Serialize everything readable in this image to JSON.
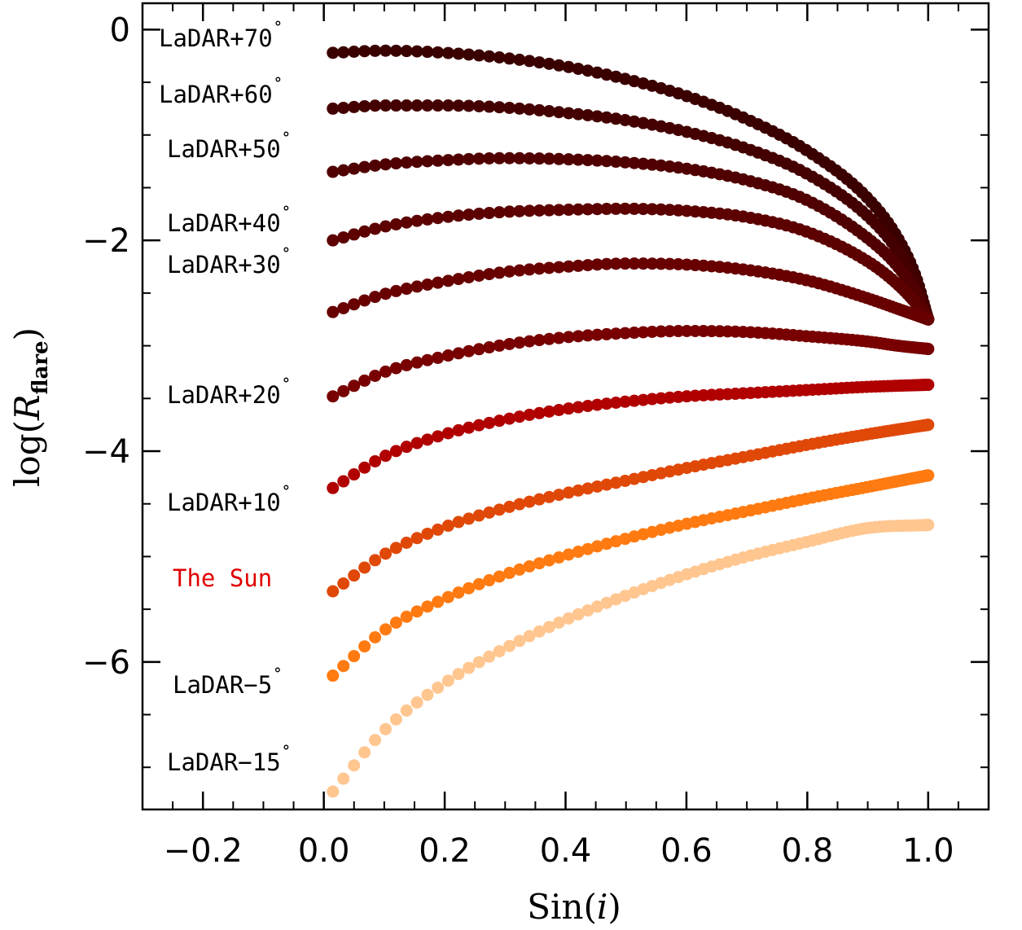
{
  "chart_data": {
    "type": "scatter",
    "xlabel": "Sin(i)",
    "ylabel": "log(R_flare)",
    "ylabel_main": "log(",
    "ylabel_italic": "R",
    "ylabel_sub": "flare",
    "ylabel_close": ")",
    "xlabel_main": "Sin(",
    "xlabel_italic": "i",
    "xlabel_close": ")",
    "xlim": [
      -0.3,
      1.1
    ],
    "ylim": [
      -7.4,
      0.25
    ],
    "xticks": [
      -0.2,
      0.0,
      0.2,
      0.4,
      0.6,
      0.8,
      1.0
    ],
    "xtick_labels": [
      "−0.2",
      "0.0",
      "0.2",
      "0.4",
      "0.6",
      "0.8",
      "1.0"
    ],
    "yticks": [
      0,
      -2,
      -4,
      -6
    ],
    "ytick_labels": [
      "0",
      "−2",
      "−4",
      "−6"
    ],
    "x_minor_step": 0.05,
    "y_minor_step": 0.5,
    "x_range": [
      0.015,
      1.0
    ],
    "grid": false,
    "legend": "none",
    "series": [
      {
        "name": "LaDAR+70°",
        "color": "#3a0000",
        "x": [
          0.015,
          0.1,
          0.2,
          0.3,
          0.4,
          0.5,
          0.6,
          0.7,
          0.8,
          0.9,
          0.95,
          0.98,
          1.0
        ],
        "y": [
          -0.22,
          -0.2,
          -0.22,
          -0.27,
          -0.35,
          -0.47,
          -0.63,
          -0.85,
          -1.15,
          -1.6,
          -1.98,
          -2.35,
          -2.75
        ]
      },
      {
        "name": "LaDAR+60°",
        "color": "#440000",
        "x": [
          0.015,
          0.1,
          0.2,
          0.3,
          0.4,
          0.5,
          0.6,
          0.7,
          0.8,
          0.9,
          0.95,
          0.98,
          1.0
        ],
        "y": [
          -0.75,
          -0.72,
          -0.72,
          -0.74,
          -0.79,
          -0.86,
          -0.97,
          -1.13,
          -1.37,
          -1.77,
          -2.1,
          -2.42,
          -2.75
        ]
      },
      {
        "name": "LaDAR+50°",
        "color": "#500000",
        "x": [
          0.015,
          0.1,
          0.2,
          0.3,
          0.4,
          0.5,
          0.6,
          0.7,
          0.8,
          0.9,
          0.95,
          0.98,
          1.0
        ],
        "y": [
          -1.35,
          -1.28,
          -1.24,
          -1.22,
          -1.23,
          -1.26,
          -1.32,
          -1.43,
          -1.62,
          -1.98,
          -2.25,
          -2.5,
          -2.75
        ]
      },
      {
        "name": "LaDAR+40°",
        "color": "#5c0000",
        "x": [
          0.015,
          0.1,
          0.2,
          0.3,
          0.4,
          0.5,
          0.6,
          0.7,
          0.8,
          0.9,
          0.95,
          0.98,
          1.0
        ],
        "y": [
          -2.0,
          -1.87,
          -1.78,
          -1.73,
          -1.71,
          -1.7,
          -1.72,
          -1.78,
          -1.92,
          -2.2,
          -2.42,
          -2.6,
          -2.75
        ]
      },
      {
        "name": "LaDAR+30°",
        "color": "#680000",
        "x": [
          0.015,
          0.1,
          0.2,
          0.3,
          0.4,
          0.5,
          0.6,
          0.7,
          0.8,
          0.9,
          0.95,
          0.98,
          1.0
        ],
        "y": [
          -2.68,
          -2.51,
          -2.39,
          -2.3,
          -2.25,
          -2.22,
          -2.23,
          -2.28,
          -2.38,
          -2.55,
          -2.65,
          -2.71,
          -2.75
        ]
      },
      {
        "name": "LaDAR+20°",
        "color": "#780000",
        "x": [
          0.015,
          0.1,
          0.2,
          0.3,
          0.4,
          0.5,
          0.6,
          0.7,
          0.8,
          0.9,
          0.95,
          1.0
        ],
        "y": [
          -3.48,
          -3.25,
          -3.1,
          -2.99,
          -2.92,
          -2.88,
          -2.86,
          -2.87,
          -2.91,
          -2.96,
          -3.0,
          -3.03
        ]
      },
      {
        "name": "LaDAR+10°",
        "color": "#b00000",
        "x": [
          0.015,
          0.1,
          0.2,
          0.3,
          0.4,
          0.5,
          0.6,
          0.7,
          0.8,
          0.9,
          1.0
        ],
        "y": [
          -4.35,
          -4.05,
          -3.84,
          -3.7,
          -3.6,
          -3.53,
          -3.48,
          -3.45,
          -3.42,
          -3.39,
          -3.37
        ]
      },
      {
        "name": "The Sun",
        "color": "#e04808",
        "x": [
          0.015,
          0.1,
          0.2,
          0.3,
          0.4,
          0.5,
          0.6,
          0.7,
          0.8,
          0.9,
          1.0
        ],
        "y": [
          -5.33,
          -4.98,
          -4.72,
          -4.54,
          -4.4,
          -4.28,
          -4.16,
          -4.05,
          -3.94,
          -3.84,
          -3.75
        ]
      },
      {
        "name": "LaDAR−5°",
        "color": "#ff7a10",
        "x": [
          0.015,
          0.1,
          0.2,
          0.3,
          0.4,
          0.5,
          0.6,
          0.7,
          0.8,
          0.9,
          1.0
        ],
        "y": [
          -6.13,
          -5.7,
          -5.4,
          -5.17,
          -4.99,
          -4.83,
          -4.69,
          -4.57,
          -4.45,
          -4.34,
          -4.23
        ]
      },
      {
        "name": "LaDAR−15°",
        "color": "#ffc690",
        "x": [
          0.015,
          0.1,
          0.2,
          0.3,
          0.4,
          0.5,
          0.6,
          0.7,
          0.8,
          0.9,
          1.0
        ],
        "y": [
          -7.23,
          -6.65,
          -6.2,
          -5.87,
          -5.6,
          -5.37,
          -5.17,
          -5.0,
          -4.86,
          -4.73,
          -4.7
        ]
      }
    ],
    "annotations": [
      {
        "text": "LaDAR+70",
        "deg": "˚",
        "color": "#000000"
      },
      {
        "text": "LaDAR+60",
        "deg": "˚",
        "color": "#000000"
      },
      {
        "text": "LaDAR+50",
        "deg": "˚",
        "color": "#000000"
      },
      {
        "text": "LaDAR+40",
        "deg": "˚",
        "color": "#000000"
      },
      {
        "text": "LaDAR+30",
        "deg": "˚",
        "color": "#000000"
      },
      {
        "text": "LaDAR+20",
        "deg": "˚",
        "color": "#000000"
      },
      {
        "text": "LaDAR+10",
        "deg": "˚",
        "color": "#000000"
      },
      {
        "text": "The Sun",
        "deg": "",
        "color": "#e00000"
      },
      {
        "text": "LaDAR−5",
        "deg": "˚",
        "color": "#000000"
      },
      {
        "text": "LaDAR−15",
        "deg": "˚",
        "color": "#000000"
      }
    ]
  }
}
